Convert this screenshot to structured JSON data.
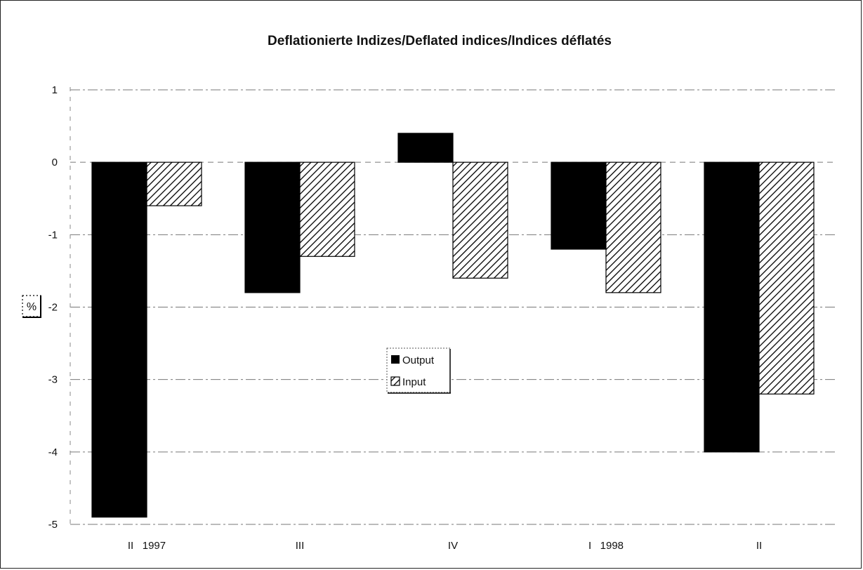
{
  "chart_data": {
    "type": "bar",
    "title": "Deflationierte Indizes/Deflated indices/Indices déflatés",
    "ylabel": "%",
    "categories": [
      "II   1997",
      "III",
      "IV",
      "I   1998",
      "II"
    ],
    "series": [
      {
        "name": "Output",
        "values": [
          -4.9,
          -1.8,
          0.4,
          -1.2,
          -4.0
        ],
        "fill": "#000000",
        "pattern": "solid"
      },
      {
        "name": "Input",
        "values": [
          -0.6,
          -1.3,
          -1.6,
          -1.8,
          -3.2
        ],
        "fill": "#ffffff",
        "pattern": "diagonal-hatch"
      }
    ],
    "ylim": [
      -5,
      1
    ],
    "yticks": [
      1,
      0,
      -1,
      -2,
      -3,
      -4,
      -5
    ],
    "grid": true,
    "legend_position": "center"
  }
}
